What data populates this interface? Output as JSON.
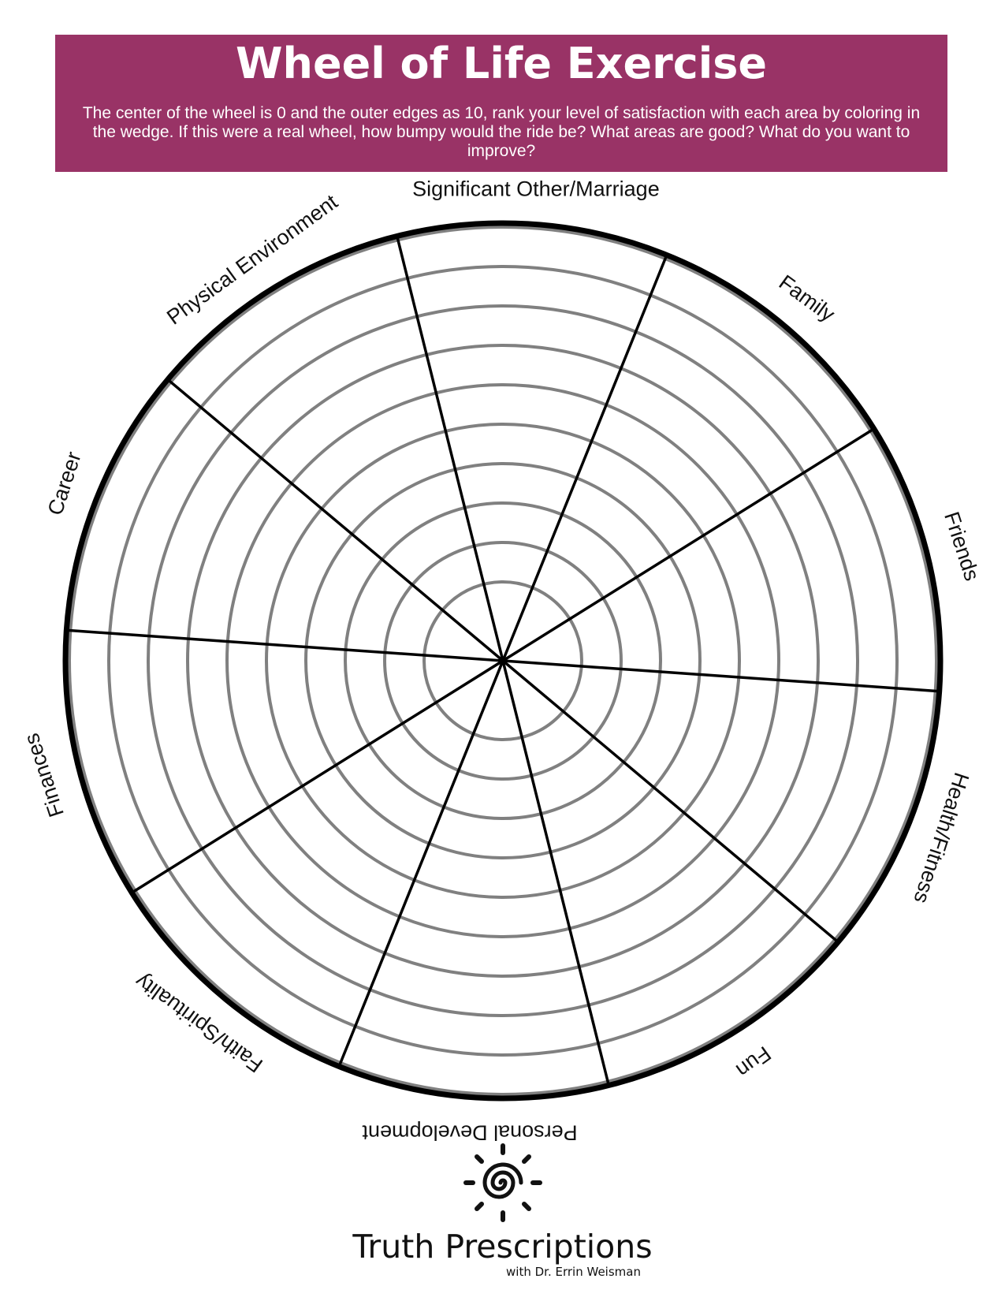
{
  "title": "Wheel of Life Exercise",
  "instructions": "The center of the wheel is 0 and the outer edges as 10, rank your level of satisfaction with each area by coloring in the wedge. If this were a real wheel, how bumpy would the ride be? What areas are good? What do you want to improve?",
  "wheel": {
    "scale_min": 0,
    "scale_max": 10,
    "ring_count": 10,
    "areas": [
      "Significant Other/Marriage",
      "Family",
      "Friends",
      "Health/Fitness",
      "Fun",
      "Personal Development",
      "Faith/Spirituality",
      "Finances",
      "Career",
      "Physical Environment"
    ]
  },
  "brand": {
    "name": "Truth Prescriptions",
    "tagline": "with Dr. Errin Weisman",
    "logo_icon": "spiral-sun-icon"
  },
  "colors": {
    "header_bg": "#993366",
    "ring_stroke": "#808080",
    "spoke_stroke": "#000000"
  }
}
